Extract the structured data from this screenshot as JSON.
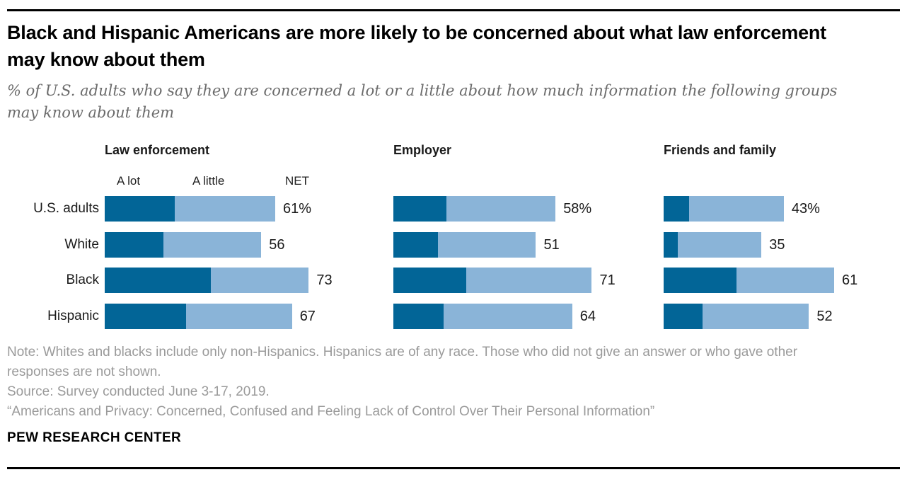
{
  "header": {
    "title": "Black and Hispanic Americans are more likely to be concerned about what law enforcement may know about them",
    "subtitle": "% of U.S. adults who say they are concerned a lot or a little about how much information the following groups may know about them"
  },
  "chart_data": {
    "type": "bar",
    "stacked": true,
    "orientation": "horizontal",
    "categories": [
      "U.S. adults",
      "White",
      "Black",
      "Hispanic"
    ],
    "legend": [
      "A lot",
      "A little",
      "NET"
    ],
    "colors": {
      "a_lot": "#026597",
      "a_little": "#8ab4d8"
    },
    "panels": [
      {
        "title": "Law enforcement",
        "series": [
          {
            "name": "A lot",
            "values": [
              25,
              21,
              38,
              29
            ]
          },
          {
            "name": "A little",
            "values": [
              36,
              35,
              35,
              38
            ]
          }
        ],
        "net": [
          61,
          56,
          73,
          67
        ],
        "net_labels": [
          "61%",
          "56",
          "73",
          "67"
        ]
      },
      {
        "title": "Employer",
        "series": [
          {
            "name": "A lot",
            "values": [
              19,
              16,
              26,
              18
            ]
          },
          {
            "name": "A little",
            "values": [
              39,
              35,
              45,
              46
            ]
          }
        ],
        "net": [
          58,
          51,
          71,
          64
        ],
        "net_labels": [
          "58%",
          "51",
          "71",
          "64"
        ]
      },
      {
        "title": "Friends and family",
        "series": [
          {
            "name": "A lot",
            "values": [
              9,
              5,
              26,
              14
            ]
          },
          {
            "name": "A little",
            "values": [
              34,
              30,
              35,
              38
            ]
          }
        ],
        "net": [
          43,
          35,
          61,
          52
        ],
        "net_labels": [
          "43%",
          "35",
          "61",
          "52"
        ]
      }
    ]
  },
  "footer": {
    "note": "Note: Whites and blacks include only non-Hispanics. Hispanics are of any race. Those who did not give an answer or who gave other responses are not shown.",
    "source": "Source: Survey conducted June 3-17, 2019.",
    "quote": "“Americans and Privacy: Concerned, Confused and Feeling Lack of Control Over Their Personal Information”",
    "brand": "PEW RESEARCH CENTER"
  }
}
